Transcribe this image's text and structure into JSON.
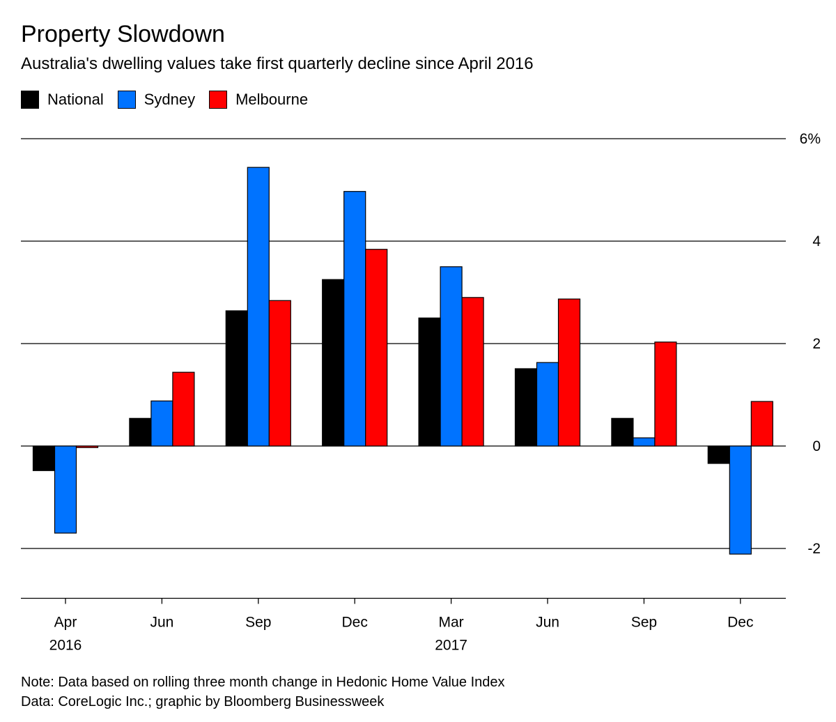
{
  "chart_data": {
    "type": "bar",
    "title": "Property Slowdown",
    "subtitle": "Australia's dwelling values take first quarterly decline since April 2016",
    "categories": [
      "Apr",
      "Jun",
      "Sep",
      "Dec",
      "Mar",
      "Jun",
      "Sep",
      "Dec"
    ],
    "year_labels": [
      "2016",
      "",
      "",
      "",
      "2017",
      "",
      "",
      ""
    ],
    "series": [
      {
        "name": "National",
        "color": "#000000",
        "values": [
          -0.48,
          0.54,
          2.64,
          3.25,
          2.5,
          1.51,
          0.54,
          -0.34
        ]
      },
      {
        "name": "Sydney",
        "color": "#0073FF",
        "values": [
          -1.7,
          0.88,
          5.44,
          4.97,
          3.5,
          1.63,
          0.16,
          -2.11
        ]
      },
      {
        "name": "Melbourne",
        "color": "#FF0000",
        "values": [
          -0.03,
          1.44,
          2.84,
          3.84,
          2.9,
          2.87,
          2.03,
          0.87
        ]
      }
    ],
    "ylim": [
      -3,
      6
    ],
    "yticks": [
      6,
      4,
      2,
      0,
      -2
    ],
    "ytick_labels": [
      "6%",
      "4",
      "2",
      "0",
      "-2"
    ],
    "grid": true,
    "legend": "top-left",
    "xlabel": "",
    "ylabel": ""
  },
  "notes": {
    "note": "Note: Data based on rolling three month change in Hedonic Home Value Index",
    "source": "Data: CoreLogic Inc.; graphic by Bloomberg Businessweek"
  }
}
